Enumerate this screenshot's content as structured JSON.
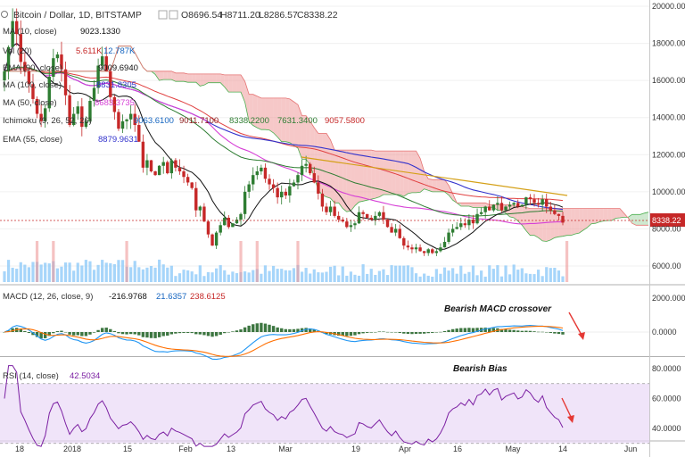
{
  "header": {
    "title": "Bitcoin / Dollar, 1D, BITSTAMP",
    "open": "O8696.54",
    "high": "H8711.20",
    "low": "L8286.57",
    "close": "C8338.22"
  },
  "indicator_labels": [
    {
      "name": "MA (10, close)",
      "value": "9023.1330"
    },
    {
      "name": "Vol (20)",
      "value": "5.611K",
      "value2": "12.787K"
    },
    {
      "name": "EMA (90, close)",
      "value": "9009.6940"
    },
    {
      "name": "MA (100, close)",
      "value": "8831.8305"
    },
    {
      "name": "MA (50, close)",
      "value": "8683.3735"
    },
    {
      "name": "Ichimoku (9, 26, 52, 26)",
      "values": [
        "9063.6100",
        "9011.7100",
        "8338.2200",
        "7631.3400",
        "9057.5800"
      ]
    },
    {
      "name": "EMA (55, close)",
      "value": "8879.9631"
    }
  ],
  "macd_label": {
    "name": "MACD (12, 26, close, 9)",
    "values": [
      "-216.9768",
      "21.6357",
      "238.6125"
    ]
  },
  "rsi_label": {
    "name": "RSI (14, close)",
    "value": "42.5034"
  },
  "annotations": {
    "macd": "Bearish MACD crossover",
    "rsi": "Bearish Bias"
  },
  "price_badge": "8338.22",
  "colors": {
    "up": "#2e7d32",
    "down": "#c62828",
    "ma10": "#111111",
    "ema55": "#2e7d32",
    "ma50": "#d63fd6",
    "ma100": "#3333cc",
    "ema90": "#e04040",
    "cloud_bull": "#a5d6a7",
    "cloud_bear": "#ef9a9a",
    "macd": "#2196f3",
    "signal": "#ff6f00",
    "rsi": "#7b1fa2",
    "rsi_band": "#ead8f7",
    "trendline": "#d4a017",
    "arrow": "#e53935"
  },
  "chart_data": {
    "type": "candlestick",
    "price_axis": {
      "ticks": [
        "20000.00",
        "18000.00",
        "16000.00",
        "14000.00",
        "12000.00",
        "10000.00",
        "8000.00",
        "6000.00"
      ],
      "ylim": [
        5000,
        20000
      ]
    },
    "macd_axis": {
      "ticks": [
        "2000.0000",
        "0.0000"
      ]
    },
    "rsi_axis": {
      "ticks": [
        "80.0000",
        "60.0000",
        "40.0000"
      ],
      "bands": [
        30,
        70
      ]
    },
    "x_ticks": [
      "18",
      "2018",
      "15",
      "Feb",
      "13",
      "Mar",
      "19",
      "Apr",
      "16",
      "May",
      "14",
      "Jun"
    ],
    "closes": [
      16500,
      17800,
      19200,
      18500,
      17000,
      16500,
      15800,
      15000,
      14200,
      13800,
      14500,
      16200,
      17200,
      17400,
      16600,
      15200,
      13600,
      14200,
      14600,
      13500,
      13800,
      14900,
      15600,
      16800,
      17300,
      16500,
      15100,
      14300,
      13400,
      13800,
      13900,
      14200,
      13600,
      12700,
      11300,
      11700,
      11100,
      10900,
      11400,
      11600,
      11000,
      11700,
      11300,
      11100,
      10800,
      10500,
      10200,
      9000,
      9200,
      8400,
      7700,
      7100,
      7800,
      8200,
      8600,
      8100,
      8300,
      8500,
      8800,
      10000,
      10400,
      10900,
      11100,
      11300,
      10700,
      10400,
      10200,
      9700,
      10000,
      9800,
      10300,
      10500,
      10900,
      11400,
      11500,
      11000,
      10500,
      9900,
      9200,
      8900,
      9200,
      8700,
      8500,
      8400,
      8100,
      8200,
      8300,
      8900,
      8800,
      8600,
      8500,
      8700,
      8900,
      8500,
      8100,
      7800,
      8000,
      7500,
      7100,
      7000,
      6900,
      7000,
      6800,
      6700,
      6900,
      6700,
      6800,
      7000,
      7300,
      7800,
      8000,
      8100,
      8300,
      8200,
      8500,
      8300,
      8800,
      8900,
      9200,
      9000,
      9300,
      9400,
      9000,
      9200,
      9300,
      9400,
      9200,
      9300,
      9700,
      9600,
      9400,
      9300,
      9600,
      9200,
      9000,
      8800,
      8700,
      8338
    ],
    "volume_range": [
      0,
      100
    ],
    "macd_range": [
      -1500,
      3000
    ],
    "rsi_range": [
      25,
      85
    ],
    "rsi_last": 42.5
  }
}
